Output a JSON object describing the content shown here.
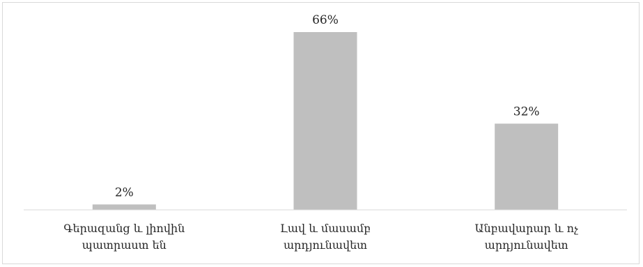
{
  "chart_data": {
    "type": "bar",
    "categories": [
      [
        "Գերազանց և լիովին",
        "պատրաստ են"
      ],
      [
        "Լավ և մասամբ",
        "արդյունավետ"
      ],
      [
        "Անբավարար և ոչ",
        "արդյունավետ"
      ]
    ],
    "values": [
      2,
      66,
      32
    ],
    "data_labels": [
      "2%",
      "66%",
      "32%"
    ],
    "ylim": [
      0,
      66
    ],
    "grid": false,
    "legend": "none",
    "colors": {
      "bar": "#bfbfbf",
      "axis": "#d9d9d9",
      "text": "#262626"
    }
  }
}
